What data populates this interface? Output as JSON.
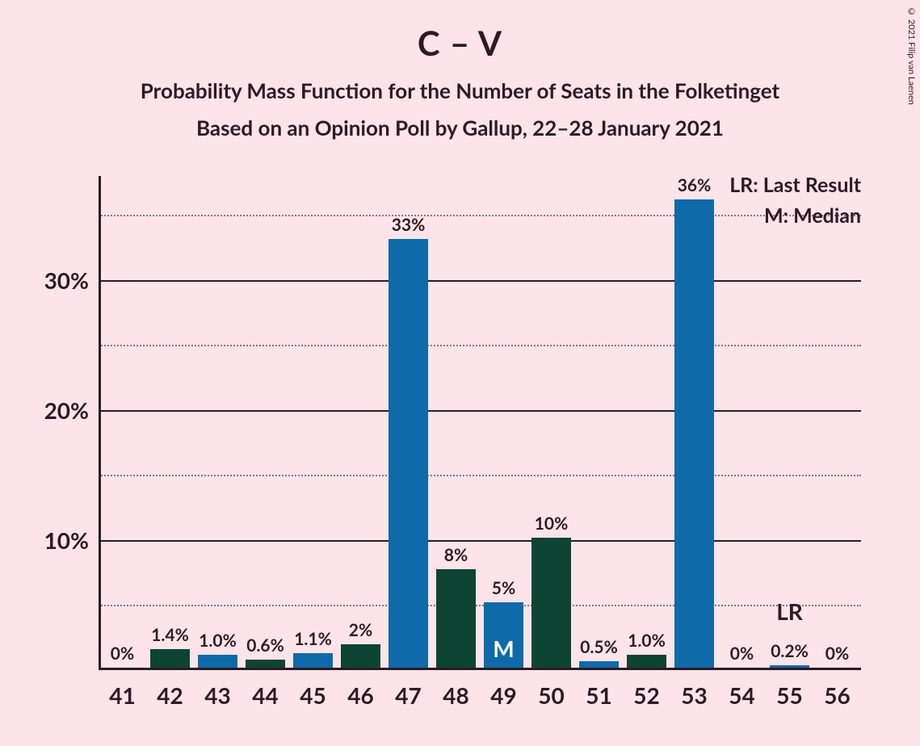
{
  "title": "C – V",
  "subtitle1": "Probability Mass Function for the Number of Seats in the Folketinget",
  "subtitle2": "Based on an Opinion Poll by Gallup, 22–28 January 2021",
  "copyright": "© 2021 Filip van Laenen",
  "legend": {
    "lr": "LR: Last Result",
    "m": "M: Median"
  },
  "chart": {
    "type": "bar",
    "background_color": "#fce4e8",
    "axis_color": "#2d1a26",
    "text_color": "#2d1a26",
    "bar_width_ratio": 0.82,
    "y_axis": {
      "min": 0,
      "max": 38,
      "solid_ticks": [
        10,
        20,
        30
      ],
      "dotted_ticks": [
        5,
        15,
        25,
        35
      ],
      "tick_labels": {
        "10": "10%",
        "20": "20%",
        "30": "30%"
      },
      "label_fontsize": 28
    },
    "x_axis": {
      "categories": [
        "41",
        "42",
        "43",
        "44",
        "45",
        "46",
        "47",
        "48",
        "49",
        "50",
        "51",
        "52",
        "53",
        "54",
        "55",
        "56"
      ],
      "label_fontsize": 28
    },
    "colors": {
      "green": "#0e4434",
      "blue": "#0e6aa8"
    },
    "bars": [
      {
        "x": "41",
        "value": 0.0,
        "label": "0%",
        "color": "blue"
      },
      {
        "x": "42",
        "value": 1.4,
        "label": "1.4%",
        "color": "green"
      },
      {
        "x": "43",
        "value": 1.0,
        "label": "1.0%",
        "color": "blue"
      },
      {
        "x": "44",
        "value": 0.6,
        "label": "0.6%",
        "color": "green"
      },
      {
        "x": "45",
        "value": 1.1,
        "label": "1.1%",
        "color": "blue"
      },
      {
        "x": "46",
        "value": 1.8,
        "label": "2%",
        "color": "green"
      },
      {
        "x": "47",
        "value": 33.0,
        "label": "33%",
        "color": "blue"
      },
      {
        "x": "48",
        "value": 7.6,
        "label": "8%",
        "color": "green"
      },
      {
        "x": "49",
        "value": 5.0,
        "label": "5%",
        "color": "blue"
      },
      {
        "x": "50",
        "value": 10.0,
        "label": "10%",
        "color": "green"
      },
      {
        "x": "51",
        "value": 0.5,
        "label": "0.5%",
        "color": "blue"
      },
      {
        "x": "52",
        "value": 1.0,
        "label": "1.0%",
        "color": "green"
      },
      {
        "x": "53",
        "value": 36.0,
        "label": "36%",
        "color": "blue"
      },
      {
        "x": "54",
        "value": 0.0,
        "label": "0%",
        "color": "green"
      },
      {
        "x": "55",
        "value": 0.2,
        "label": "0.2%",
        "color": "blue"
      },
      {
        "x": "56",
        "value": 0.0,
        "label": "0%",
        "color": "green"
      }
    ],
    "median_at": "49",
    "median_label": "M",
    "last_result_at": "55",
    "last_result_label": "LR"
  }
}
